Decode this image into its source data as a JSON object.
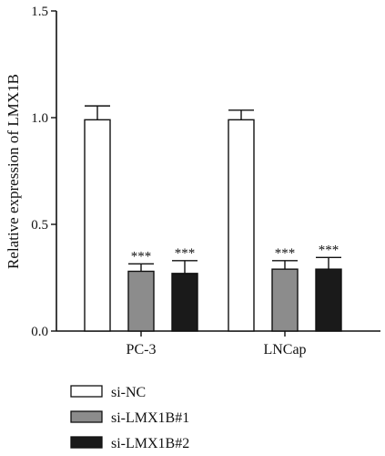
{
  "chart_data": {
    "type": "bar",
    "title": "",
    "xlabel": "",
    "ylabel": "Relative expression of LMX1B",
    "ylim": [
      0,
      1.5
    ],
    "yticks": [
      "0.0",
      "0.5",
      "1.0",
      "1.5"
    ],
    "categories": [
      "PC-3",
      "LNCap"
    ],
    "series": [
      {
        "name": "si-NC",
        "color": "#ffffff",
        "values": [
          0.99,
          0.99
        ],
        "errors": [
          0.065,
          0.045
        ],
        "significance": [
          "",
          ""
        ]
      },
      {
        "name": "si-LMX1B#1",
        "color": "#8c8c8c",
        "values": [
          0.28,
          0.29
        ],
        "errors": [
          0.035,
          0.04
        ],
        "significance": [
          "***",
          "***"
        ]
      },
      {
        "name": "si-LMX1B#2",
        "color": "#1a1a1a",
        "values": [
          0.27,
          0.29
        ],
        "errors": [
          0.06,
          0.055
        ],
        "significance": [
          "***",
          "***"
        ]
      }
    ],
    "legend_position": "bottom-left",
    "grid": false
  }
}
